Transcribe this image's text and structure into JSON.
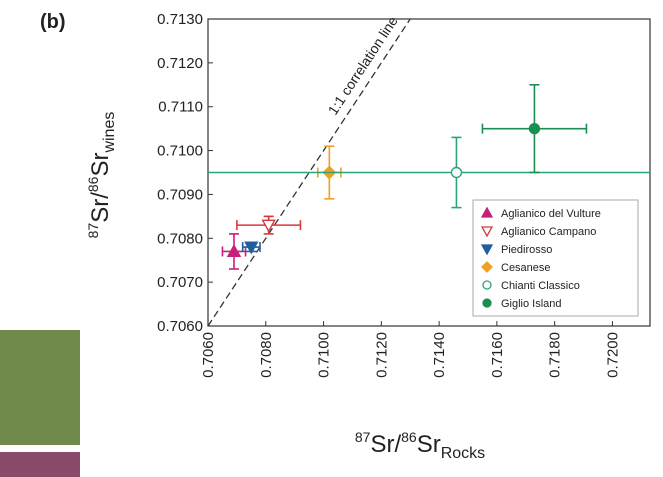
{
  "panel_label": "(b)",
  "chart_data": {
    "type": "scatter",
    "x_label": {
      "pre": "87",
      "a": "Sr/",
      "mid": "86",
      "b": "Sr",
      "sub": "Rocks"
    },
    "y_label": {
      "pre": "87",
      "a": "Sr/",
      "mid": "86",
      "b": "Sr",
      "sub": "wines"
    },
    "annotation": "1:1 correlation line",
    "xlim": [
      0.706,
      0.7213
    ],
    "ylim": [
      0.706,
      0.713
    ],
    "xticks": [
      {
        "value": 0.706,
        "label": "0.7060"
      },
      {
        "value": 0.708,
        "label": "0.7080"
      },
      {
        "value": 0.71,
        "label": "0.7100"
      },
      {
        "value": 0.712,
        "label": "0.7120"
      },
      {
        "value": 0.714,
        "label": "0.7140"
      },
      {
        "value": 0.716,
        "label": "0.7160"
      },
      {
        "value": 0.718,
        "label": "0.7180"
      },
      {
        "value": 0.72,
        "label": "0.7200"
      }
    ],
    "yticks": [
      {
        "value": 0.706,
        "label": "0.7060"
      },
      {
        "value": 0.707,
        "label": "0.7070"
      },
      {
        "value": 0.708,
        "label": "0.7080"
      },
      {
        "value": 0.709,
        "label": "0.7090"
      },
      {
        "value": 0.71,
        "label": "0.7100"
      },
      {
        "value": 0.711,
        "label": "0.7110"
      },
      {
        "value": 0.712,
        "label": "0.7120"
      },
      {
        "value": 0.713,
        "label": "0.7130"
      }
    ],
    "legend": "lower right",
    "series": [
      {
        "name": "Aglianico del Vulture",
        "color": "#c8207a",
        "marker": "triangle",
        "filled": true,
        "x": [
          0.7069
        ],
        "values": [
          0.7077
        ],
        "xerr": [
          0.0004
        ],
        "yerr": [
          0.0004
        ]
      },
      {
        "name": "Aglianico Campano",
        "color": "#d8383c",
        "marker": "triangle-down",
        "filled": false,
        "x": [
          0.7081
        ],
        "values": [
          0.7083
        ],
        "xerr": [
          0.0011
        ],
        "yerr": [
          0.0002
        ]
      },
      {
        "name": "Piedirosso",
        "color": "#1f5fa0",
        "marker": "triangle-down",
        "filled": true,
        "x": [
          0.7075
        ],
        "values": [
          0.7078
        ],
        "xerr": [
          0.0003
        ],
        "yerr": [
          0.0001
        ]
      },
      {
        "name": "Cesanese",
        "color": "#f0a020",
        "marker": "diamond",
        "filled": true,
        "x": [
          0.7102
        ],
        "values": [
          0.7095
        ],
        "xerr": [
          0.0004
        ],
        "yerr": [
          0.0006
        ]
      },
      {
        "name": "Chianti Classico",
        "color": "#2aa57a",
        "marker": "circle",
        "filled": false,
        "x": [
          0.7146
        ],
        "values": [
          0.7095
        ],
        "xerr": [
          0.0087
        ],
        "yerr": [
          0.0008
        ]
      },
      {
        "name": "Giglio Island",
        "color": "#1a9050",
        "marker": "circle",
        "filled": true,
        "x": [
          0.7173
        ],
        "values": [
          0.7105
        ],
        "xerr": [
          0.0018
        ],
        "yerr": [
          0.001
        ]
      }
    ]
  }
}
